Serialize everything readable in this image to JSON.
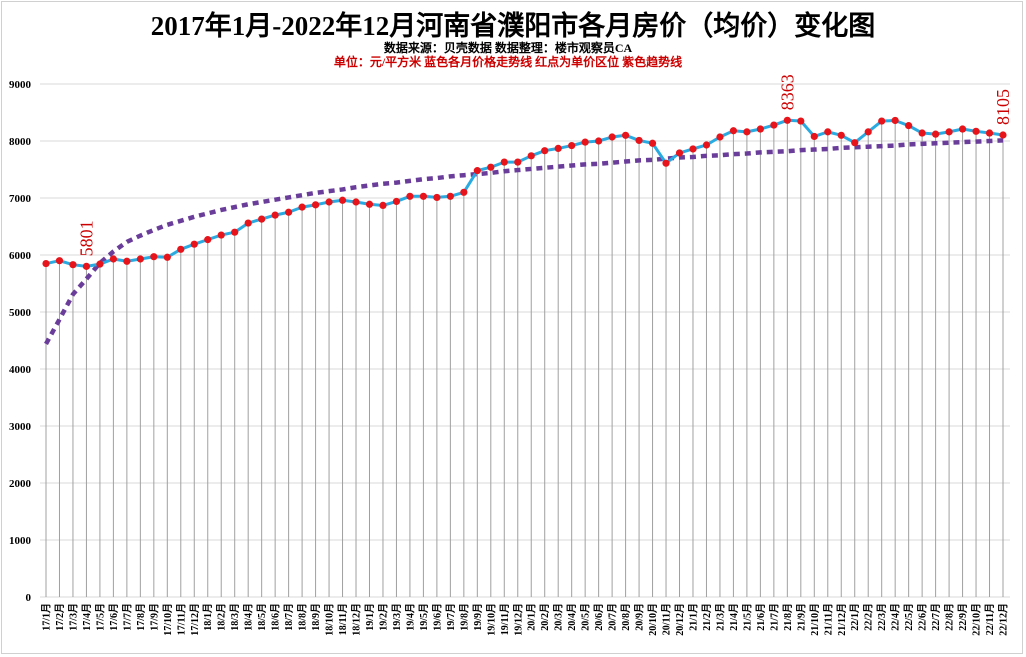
{
  "header": {
    "title": "2017年1月-2022年12月河南省濮阳市各月房价（均价）变化图",
    "subtitle": "数据来源：贝壳数据     数据整理：楼市观察员CA",
    "legend_note": "单位：元/平方米     蓝色各月价格走势线     红点为单价区位     紫色趋势线"
  },
  "colors": {
    "line": "#29abe2",
    "marker": "#e8141b",
    "trend": "#6a3d9a",
    "drop_line": "#a0a0a0",
    "grid": "#d9d9d9",
    "annotation": "#cc0000"
  },
  "chart_data": {
    "type": "line",
    "title": "2017年1月-2022年12月河南省濮阳市各月房价（均价）变化图",
    "subtitle": "数据来源：贝壳数据  数据整理：楼市观察员CA",
    "xlabel": "",
    "ylabel": "单位：元/平方米",
    "ylim": [
      0,
      9000
    ],
    "yticks": [
      0,
      1000,
      2000,
      3000,
      4000,
      5000,
      6000,
      7000,
      8000,
      9000
    ],
    "grid": true,
    "legend_position": "none",
    "categories": [
      "17/1月",
      "17/2月",
      "17/3月",
      "17/4月",
      "17/5月",
      "17/6月",
      "17/7月",
      "17/8月",
      "17/9月",
      "17/10月",
      "17/11月",
      "17/12月",
      "18/1月",
      "18/2月",
      "18/3月",
      "18/4月",
      "18/5月",
      "18/6月",
      "18/7月",
      "18/8月",
      "18/9月",
      "18/10月",
      "18/11月",
      "18/12月",
      "19/1月",
      "19/2月",
      "19/3月",
      "19/4月",
      "19/5月",
      "19/6月",
      "19/7月",
      "19/8月",
      "19/9月",
      "19/10月",
      "19/11月",
      "19/12月",
      "20/1月",
      "20/2月",
      "20/3月",
      "20/4月",
      "20/5月",
      "20/6月",
      "20/7月",
      "20/8月",
      "20/9月",
      "20/10月",
      "20/11月",
      "20/12月",
      "21/1月",
      "21/2月",
      "21/3月",
      "21/4月",
      "21/5月",
      "21/6月",
      "21/7月",
      "21/8月",
      "21/9月",
      "21/10月",
      "21/11月",
      "21/12月",
      "22/1月",
      "22/2月",
      "22/3月",
      "22/4月",
      "22/5月",
      "22/6月",
      "22/7月",
      "22/8月",
      "22/9月",
      "22/10月",
      "22/11月",
      "22/12月"
    ],
    "series": [
      {
        "name": "各月价格走势线",
        "style": "solid-blue-with-red-markers",
        "values": [
          5850,
          5900,
          5830,
          5801,
          5840,
          5930,
          5890,
          5930,
          5970,
          5960,
          6100,
          6190,
          6270,
          6350,
          6400,
          6560,
          6630,
          6700,
          6750,
          6840,
          6880,
          6930,
          6960,
          6930,
          6890,
          6870,
          6940,
          7030,
          7030,
          7010,
          7030,
          7100,
          7480,
          7540,
          7630,
          7630,
          7740,
          7830,
          7870,
          7920,
          7980,
          8000,
          8070,
          8100,
          8010,
          7960,
          7610,
          7790,
          7860,
          7930,
          8070,
          8180,
          8160,
          8210,
          8280,
          8363,
          8350,
          8080,
          8160,
          8100,
          7970,
          8160,
          8350,
          8360,
          8270,
          8140,
          8120,
          8160,
          8210,
          8170,
          8140,
          8105
        ]
      },
      {
        "name": "趋势线",
        "style": "dotted-purple",
        "type": "logarithmic-trend",
        "values": [
          4440,
          4870,
          5310,
          5580,
          5860,
          6060,
          6230,
          6340,
          6440,
          6530,
          6600,
          6670,
          6730,
          6790,
          6840,
          6890,
          6930,
          6970,
          7010,
          7050,
          7090,
          7120,
          7150,
          7190,
          7220,
          7250,
          7270,
          7300,
          7330,
          7350,
          7380,
          7400,
          7420,
          7440,
          7470,
          7490,
          7510,
          7530,
          7550,
          7570,
          7590,
          7600,
          7620,
          7640,
          7660,
          7670,
          7690,
          7710,
          7720,
          7740,
          7750,
          7770,
          7780,
          7800,
          7810,
          7820,
          7840,
          7850,
          7860,
          7880,
          7890,
          7900,
          7910,
          7920,
          7940,
          7950,
          7960,
          7970,
          7980,
          7990,
          8000,
          8010
        ]
      }
    ],
    "annotations": [
      {
        "label": "5801",
        "category": "17/4月",
        "value": 5801
      },
      {
        "label": "8363",
        "category": "21/8月",
        "value": 8363
      },
      {
        "label": "8105",
        "category": "22/12月",
        "value": 8105
      }
    ]
  }
}
